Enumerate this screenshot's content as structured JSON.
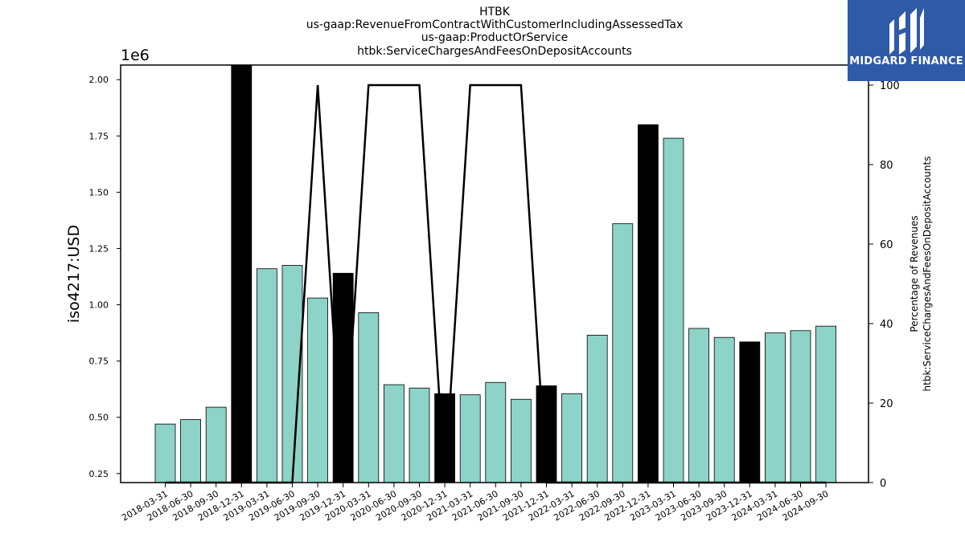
{
  "chart_data": {
    "type": "bar",
    "title_lines": [
      "HTBK",
      "us-gaap:RevenueFromContractWithCustomerIncludingAssessedTax",
      "us-gaap:ProductOrService",
      "htbk:ServiceChargesAndFeesOnDepositAccounts"
    ],
    "ylabel": "iso4217:USD",
    "y2label_lines": [
      "Percentage of Revenues",
      "htbk:ServiceChargesAndFeesOnDepositAccounts"
    ],
    "y_offset_label": "1e6",
    "categories": [
      "2018-03-31",
      "2018-06-30",
      "2018-09-30",
      "2018-12-31",
      "2019-03-31",
      "2019-06-30",
      "2019-09-30",
      "2019-12-31",
      "2020-03-31",
      "2020-06-30",
      "2020-09-30",
      "2020-12-31",
      "2021-03-31",
      "2021-06-30",
      "2021-09-30",
      "2021-12-31",
      "2022-03-31",
      "2022-06-30",
      "2022-09-30",
      "2022-12-31",
      "2023-03-31",
      "2023-06-30",
      "2023-09-30",
      "2023-12-31",
      "2024-03-31",
      "2024-06-30",
      "2024-09-30"
    ],
    "values": [
      470000,
      490000,
      545000,
      2070000,
      1160000,
      1175000,
      1030000,
      1140000,
      965000,
      645000,
      630000,
      605000,
      600000,
      655000,
      580000,
      640000,
      605000,
      865000,
      1360000,
      1800000,
      1740000,
      895000,
      855000,
      835000,
      875000,
      885000,
      905000
    ],
    "year_end": [
      false,
      false,
      false,
      true,
      false,
      false,
      false,
      true,
      false,
      false,
      false,
      true,
      false,
      false,
      false,
      true,
      false,
      false,
      false,
      true,
      false,
      false,
      false,
      true,
      false,
      false,
      false
    ],
    "percent_series": [
      0,
      0,
      0,
      0,
      0,
      0,
      100,
      0,
      100,
      100,
      100,
      0,
      100,
      100,
      100,
      0,
      0,
      0,
      0,
      0,
      0,
      0,
      0,
      0,
      0,
      0,
      0
    ],
    "yticks": [
      "0.25",
      "0.50",
      "0.75",
      "1.00",
      "1.25",
      "1.50",
      "1.75",
      "2.00"
    ],
    "ylim": [
      0.21,
      2.065
    ],
    "y2ticks": [
      "0",
      "20",
      "40",
      "60",
      "80",
      "100"
    ],
    "y2lim": [
      0,
      100
    ],
    "colors": {
      "bar": "#8dd3c7",
      "bar_year_end": "#000000",
      "line": "#000000"
    }
  },
  "brand": {
    "name": "MIDGARD FINANCE"
  }
}
